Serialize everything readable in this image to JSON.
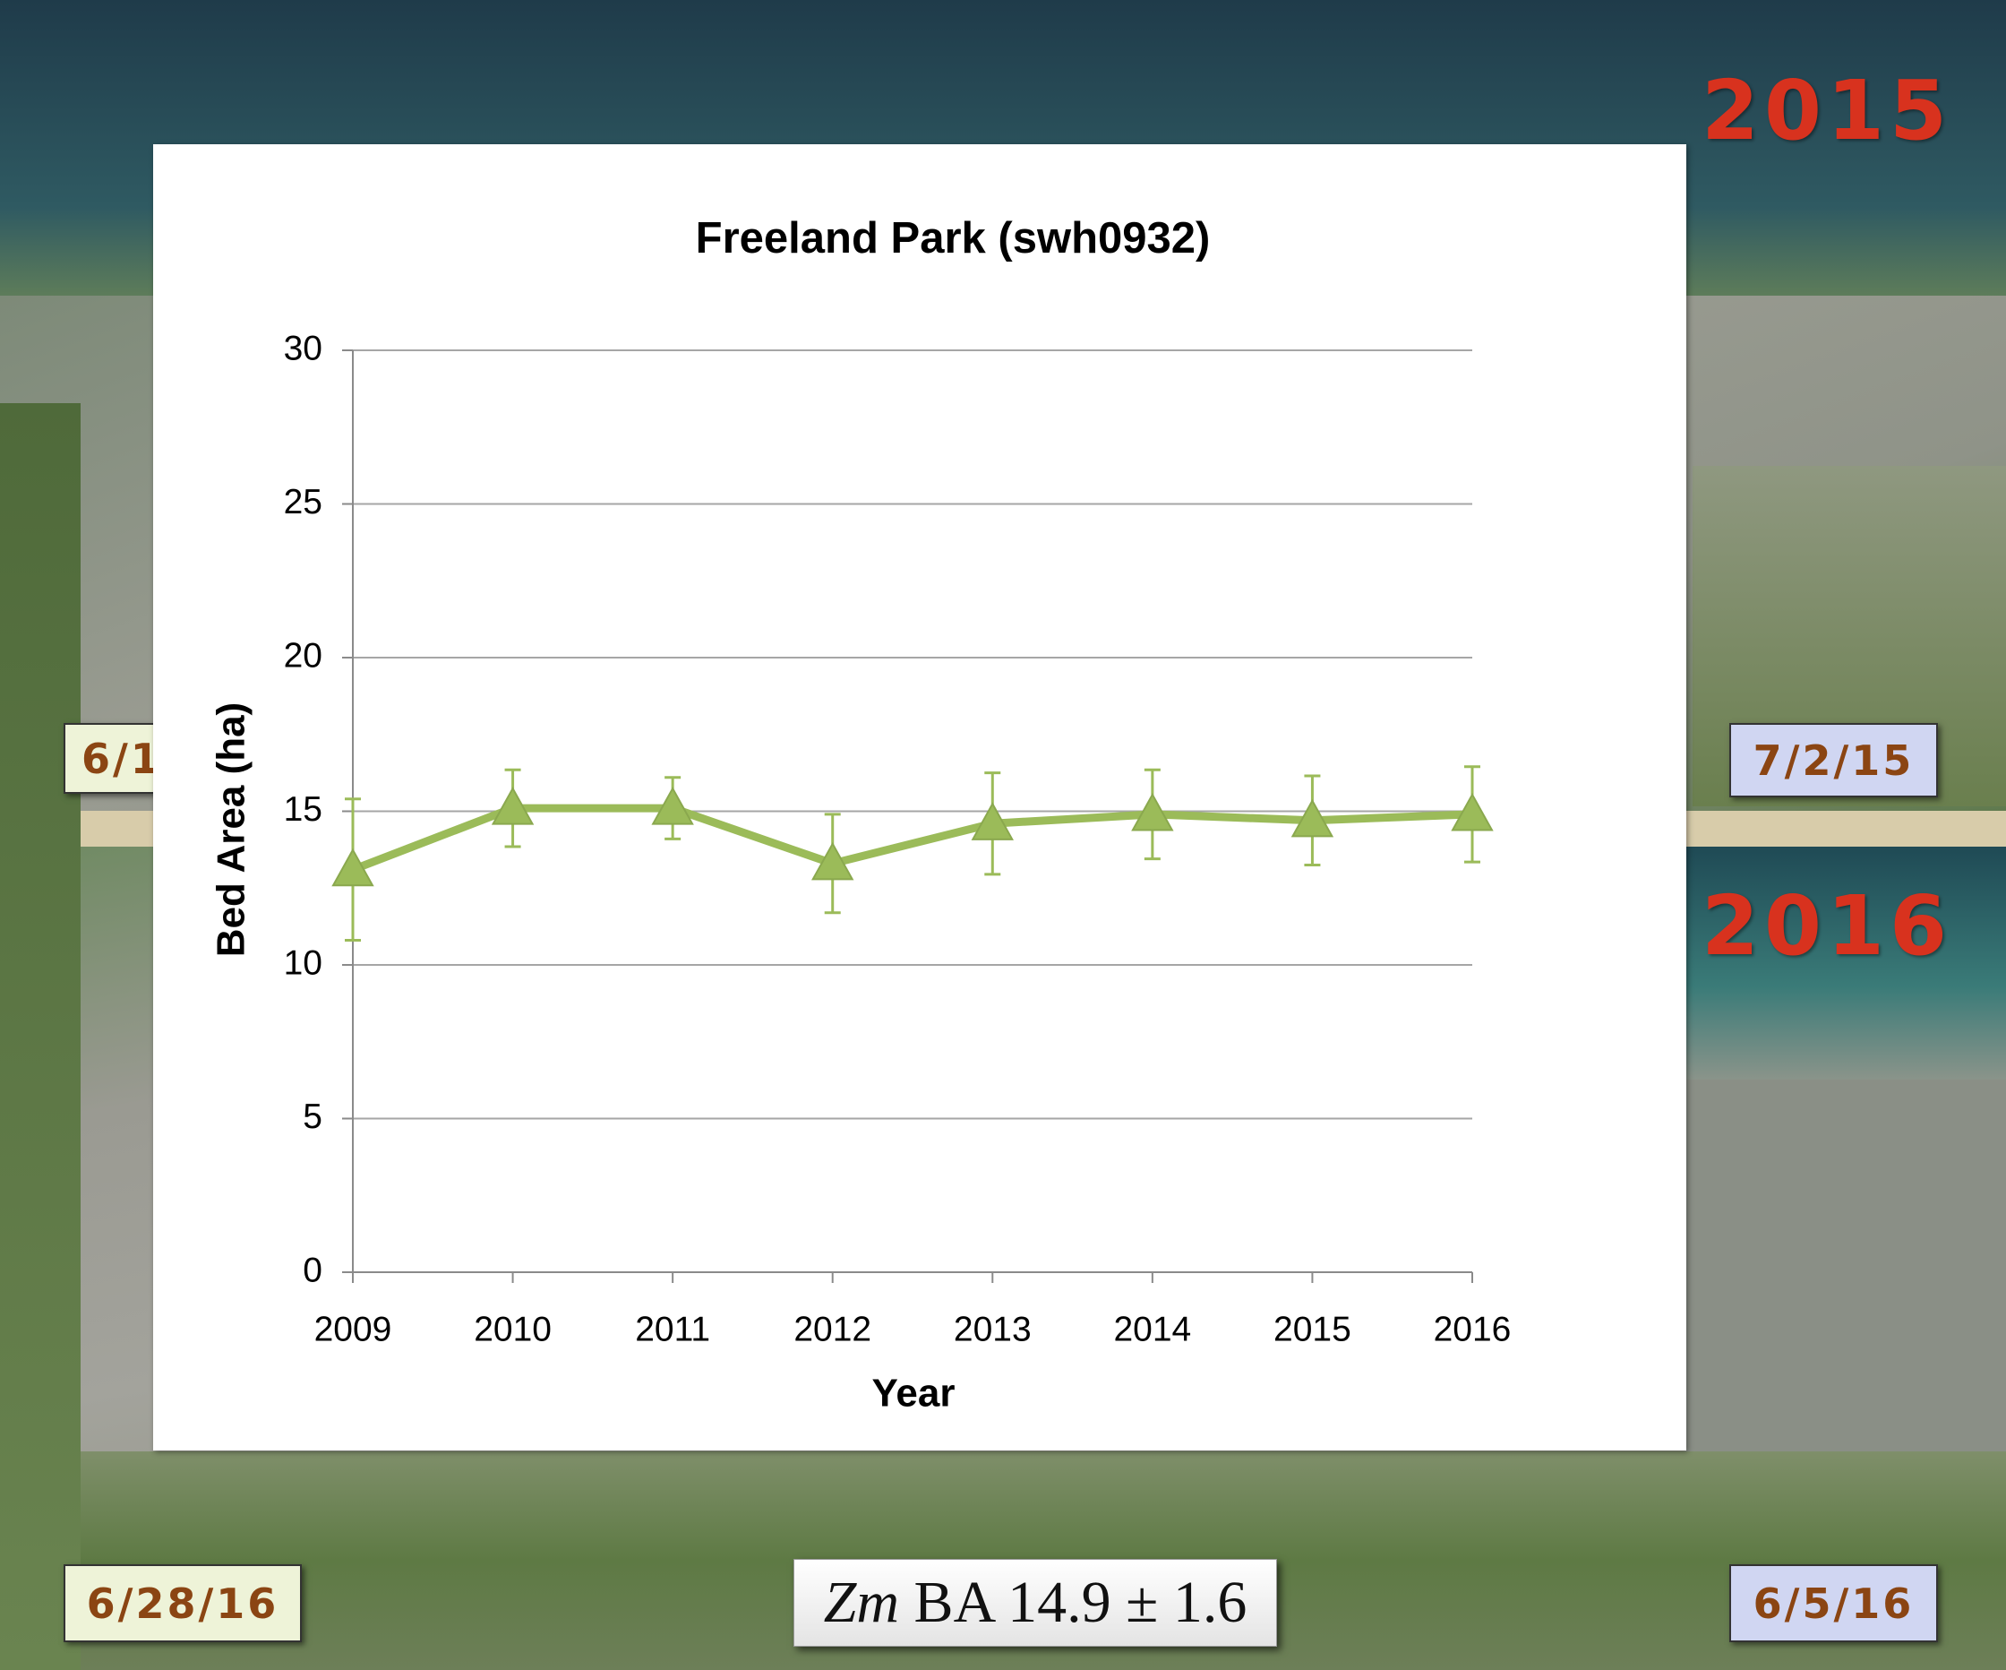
{
  "chart_data": {
    "type": "line",
    "title": "Freeland Park  (swh0932)",
    "x_label": "Year",
    "y_label": "Bed Area (ha)",
    "categories": [
      "2009",
      "2010",
      "2011",
      "2012",
      "2013",
      "2014",
      "2015",
      "2016"
    ],
    "values": [
      13.1,
      15.1,
      15.1,
      13.3,
      14.6,
      14.9,
      14.7,
      14.9
    ],
    "errors": [
      2.3,
      1.25,
      1.0,
      1.6,
      1.65,
      1.45,
      1.45,
      1.55
    ],
    "color": "#9bbb59",
    "ylim": [
      0,
      30
    ],
    "yticks": [
      0,
      5,
      10,
      15,
      20,
      25,
      30
    ],
    "grid": true
  },
  "slide": {
    "year_top": "2015",
    "year_bottom": "2016",
    "date_top_left": "6/1",
    "date_top_right": "7/2/15",
    "date_bottom_left": "6/28/16",
    "date_bottom_right": "6/5/16",
    "summary_species": "Zm",
    "summary_text": "BA 14.9 ± 1.6"
  }
}
